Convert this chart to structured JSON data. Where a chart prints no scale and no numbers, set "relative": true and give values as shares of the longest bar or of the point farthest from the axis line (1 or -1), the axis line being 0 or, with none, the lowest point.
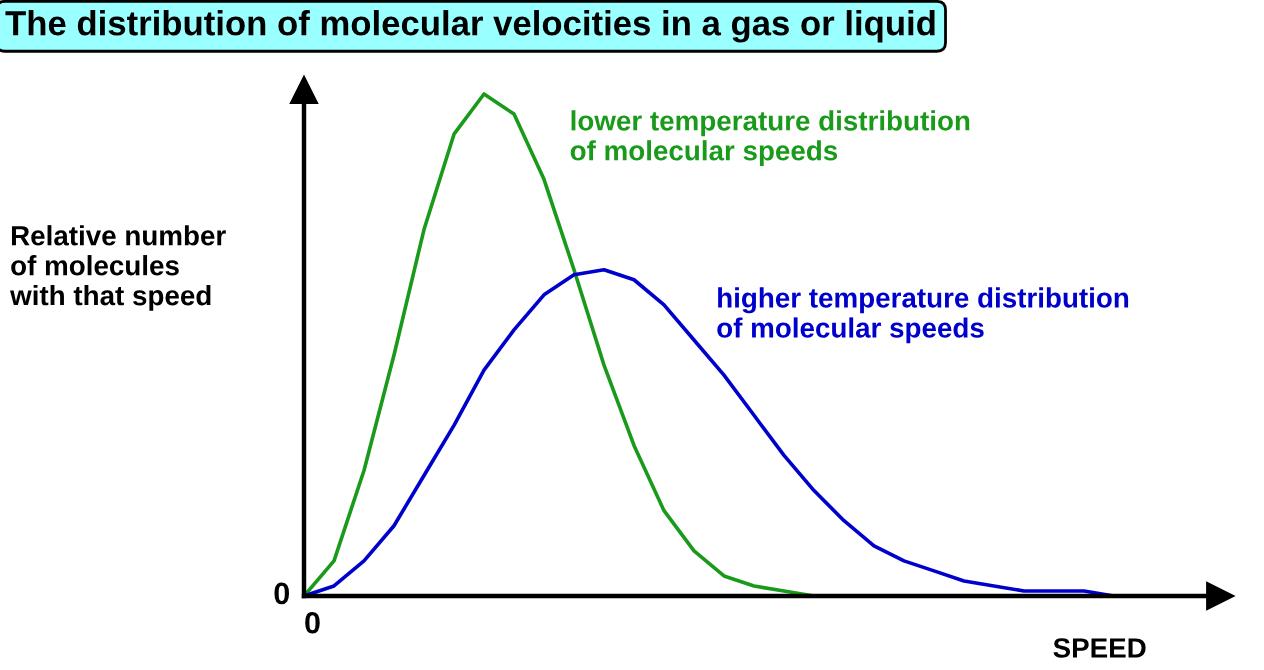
{
  "chart_data": {
    "type": "line",
    "relative": true,
    "title": "The distribution of molecular velocities in a gas or liquid",
    "ylabel": "Relative number\nof molecules\nwith that speed",
    "xlabel": "SPEED",
    "categories": [
      null,
      null,
      null,
      null,
      null,
      null,
      null,
      null,
      null,
      null,
      null,
      null,
      null,
      null,
      null,
      null,
      null,
      null,
      null,
      null,
      null,
      null,
      null,
      null,
      null,
      null,
      null,
      null,
      null,
      null,
      null
    ],
    "series": [
      {
        "name": "lower temperature distribution\nof molecular speeds",
        "color": "#1a9a1a",
        "values": [
          0,
          0.07,
          0.25,
          0.48,
          0.73,
          0.92,
          1.0,
          0.96,
          0.83,
          0.65,
          0.46,
          0.3,
          0.17,
          0.09,
          0.04,
          0.02,
          0.01,
          0,
          0,
          null,
          null,
          null,
          null,
          null,
          null,
          null,
          null,
          null,
          null,
          null,
          null
        ]
      },
      {
        "name": "higher temperature distribution\nof molecular speeds",
        "color": "#0000cc",
        "values": [
          0,
          0.02,
          0.07,
          0.14,
          0.24,
          0.34,
          0.45,
          0.53,
          0.6,
          0.64,
          0.65,
          0.63,
          0.58,
          0.51,
          0.44,
          0.36,
          0.28,
          0.21,
          0.15,
          0.1,
          0.07,
          0.05,
          0.03,
          0.02,
          0.01,
          0.01,
          0.01,
          0,
          0,
          null,
          null
        ]
      }
    ],
    "annotations": [
      "0",
      "0"
    ],
    "marker": "none",
    "line_style": "solid"
  }
}
